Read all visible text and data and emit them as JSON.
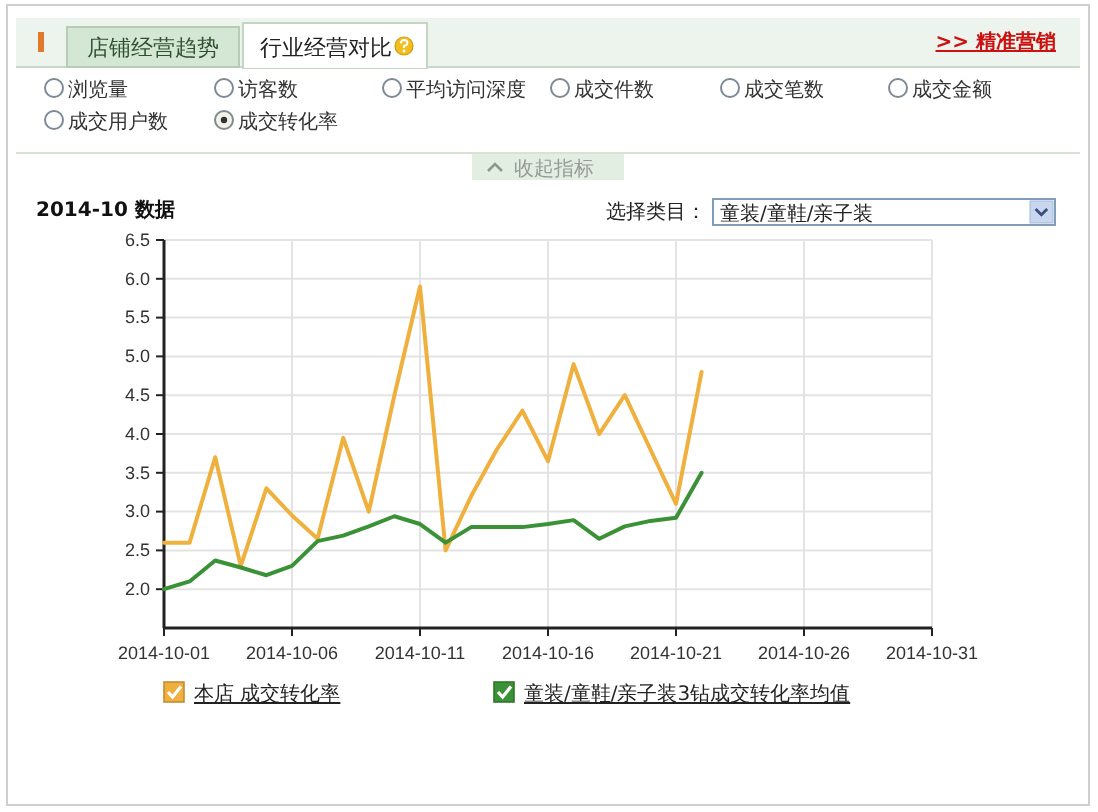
{
  "chart_data": {
    "type": "line",
    "title": "2014-10 数据",
    "annotations": [
      "店铺经营趋势",
      "行业经营对比",
      ">> 精准营销",
      "浏览量",
      "访客数",
      "平均访问深度",
      "成交件数",
      "成交笔数",
      "成交金额",
      "成交用户数",
      "成交转化率",
      "收起指标",
      "选择类目：",
      "童装/童鞋/亲子装"
    ],
    "x": [
      "2014-10-01",
      "2014-10-02",
      "2014-10-03",
      "2014-10-04",
      "2014-10-05",
      "2014-10-06",
      "2014-10-07",
      "2014-10-08",
      "2014-10-09",
      "2014-10-10",
      "2014-10-11",
      "2014-10-12",
      "2014-10-13",
      "2014-10-14",
      "2014-10-15",
      "2014-10-16",
      "2014-10-17",
      "2014-10-18",
      "2014-10-19",
      "2014-10-20",
      "2014-10-21",
      "2014-10-22"
    ],
    "series": [
      {
        "name": "本店 成交转化率",
        "color": "#efb03e",
        "values": [
          2.6,
          2.6,
          3.7,
          2.3,
          3.3,
          2.95,
          2.65,
          3.95,
          3.0,
          4.5,
          5.9,
          2.5,
          3.2,
          3.8,
          4.3,
          3.65,
          4.9,
          4.0,
          4.5,
          3.8,
          3.1,
          4.8
        ]
      },
      {
        "name": "童装/童鞋/亲子装3钻成交转化率均值",
        "color": "#3b9236",
        "values": [
          2.0,
          2.1,
          2.37,
          2.28,
          2.18,
          2.3,
          2.62,
          2.69,
          2.81,
          2.94,
          2.84,
          2.6,
          2.8,
          2.8,
          2.8,
          2.84,
          2.89,
          2.65,
          2.81,
          2.88,
          2.92,
          3.5
        ]
      }
    ],
    "xlim": [
      "2014-10-01",
      "2014-10-31"
    ],
    "xticks": [
      "2014-10-01",
      "2014-10-06",
      "2014-10-11",
      "2014-10-16",
      "2014-10-21",
      "2014-10-26",
      "2014-10-31"
    ],
    "ylim": [
      1.5,
      6.5
    ],
    "yticks": [
      {
        "value": 2,
        "label": "2.0"
      },
      {
        "value": 2.5,
        "label": "2.5"
      },
      {
        "value": 3,
        "label": "3.0"
      },
      {
        "value": 3.5,
        "label": "3.5"
      },
      {
        "value": 4,
        "label": "4.0"
      },
      {
        "value": 4.5,
        "label": "4.5"
      },
      {
        "value": 5,
        "label": "5.0"
      },
      {
        "value": 5.5,
        "label": "5.5"
      },
      {
        "value": 6,
        "label": "6.0"
      },
      {
        "value": 6.5,
        "label": "6.5"
      }
    ],
    "grid": true,
    "legend": "bottom",
    "line_style": "solid"
  }
}
